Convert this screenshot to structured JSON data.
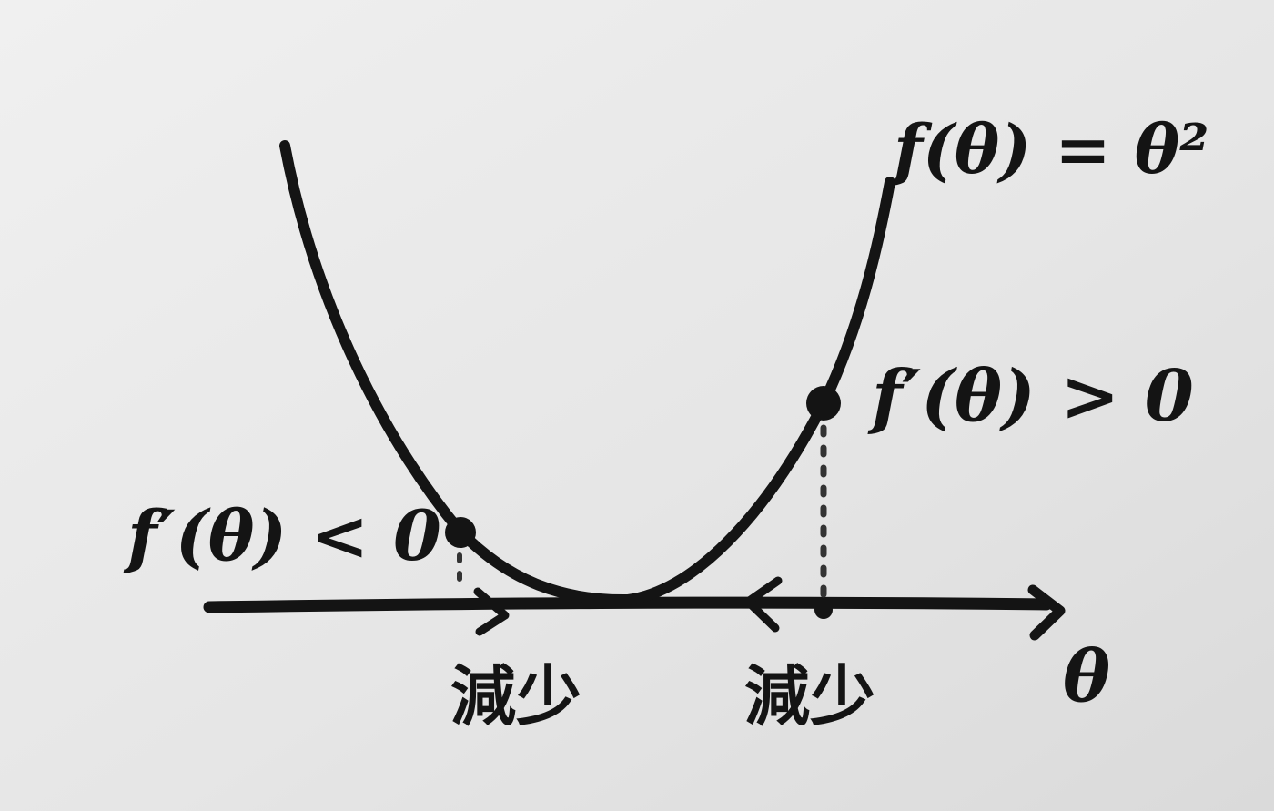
{
  "labels": {
    "function": "f(θ) = θ²",
    "derivative_positive": "f′(θ) > 0",
    "derivative_negative": "f′(θ) < 0",
    "axis": "θ",
    "direction_left": "減少",
    "direction_right": "減少"
  },
  "colors": {
    "paper": "#e9e9e9",
    "ink": "#141414"
  }
}
